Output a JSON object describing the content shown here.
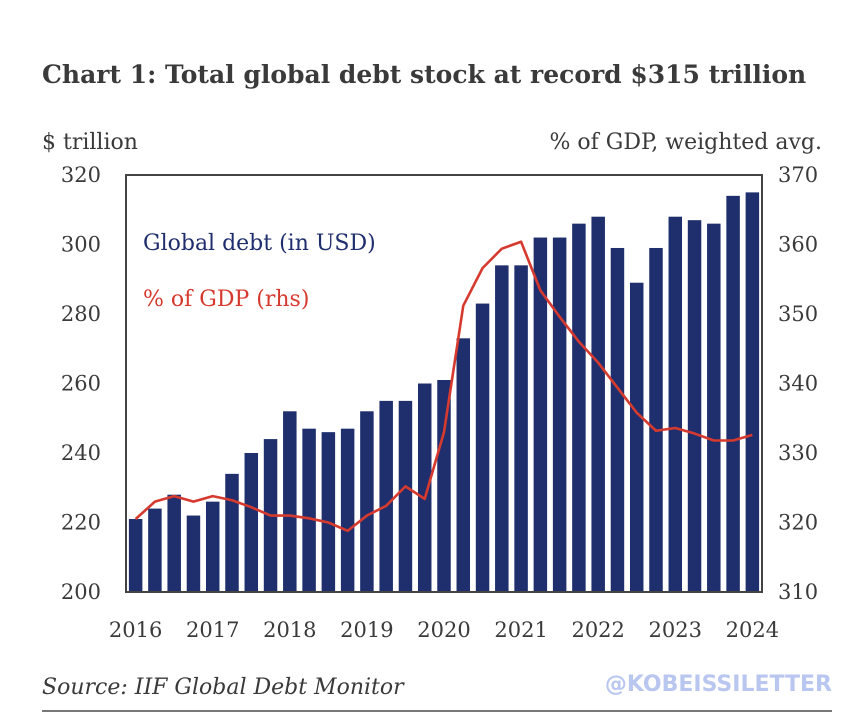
{
  "header": {
    "title": "Chart 1: Total global debt stock at record $315 trillion",
    "left_unit": "$ trillion",
    "right_unit": "% of GDP, weighted avg."
  },
  "footer": {
    "source": "Source: IIF Global Debt Monitor",
    "handle": "@KOBEISSILETTER"
  },
  "colors": {
    "bars": "#1f2e6c",
    "line": "#d63a2f",
    "frame": "#444444"
  },
  "chart_data": {
    "type": "bar",
    "title": "Chart 1: Total global debt stock at record $315 trillion",
    "x_tick_labels": [
      "2016",
      "2017",
      "2018",
      "2019",
      "2020",
      "2021",
      "2022",
      "2023",
      "2024"
    ],
    "y_left": {
      "label": "$ trillion",
      "range": [
        200,
        320
      ],
      "ticks": [
        200,
        220,
        240,
        260,
        280,
        300,
        320
      ]
    },
    "y_right": {
      "label": "% of GDP, weighted avg.",
      "range": [
        310,
        370
      ],
      "ticks": [
        310,
        320,
        330,
        340,
        350,
        360,
        370
      ]
    },
    "grid": false,
    "legend_position": "top-left",
    "categories": [
      "2016Q1",
      "2016Q2",
      "2016Q3",
      "2016Q4",
      "2017Q1",
      "2017Q2",
      "2017Q3",
      "2017Q4",
      "2018Q1",
      "2018Q2",
      "2018Q3",
      "2018Q4",
      "2019Q1",
      "2019Q2",
      "2019Q3",
      "2019Q4",
      "2020Q1",
      "2020Q2",
      "2020Q3",
      "2020Q4",
      "2021Q1",
      "2021Q2",
      "2021Q3",
      "2021Q4",
      "2022Q1",
      "2022Q2",
      "2022Q3",
      "2022Q4",
      "2023Q1",
      "2023Q2",
      "2023Q3",
      "2023Q4",
      "2024Q1"
    ],
    "series": [
      {
        "name": "Global debt (in USD)",
        "axis": "left",
        "type": "bar",
        "values": [
          221,
          224,
          228,
          222,
          226,
          234,
          240,
          244,
          252,
          247,
          246,
          247,
          252,
          255,
          255,
          260,
          261,
          273,
          283,
          294,
          294,
          302,
          302,
          306,
          308,
          299,
          289,
          299,
          308,
          307,
          306,
          314,
          315
        ]
      },
      {
        "name": "% of GDP (rhs)",
        "axis": "right",
        "type": "line",
        "values": [
          320.5,
          323,
          323.8,
          323,
          323.8,
          323.2,
          322.2,
          321,
          321,
          320.6,
          320,
          318.8,
          321,
          322.4,
          325.2,
          323.4,
          333,
          351.2,
          356.6,
          359.4,
          360.4,
          353.4,
          349.6,
          346,
          343,
          339.4,
          335.8,
          333.2,
          333.6,
          332.8,
          331.8,
          331.8,
          332.6
        ]
      }
    ]
  }
}
